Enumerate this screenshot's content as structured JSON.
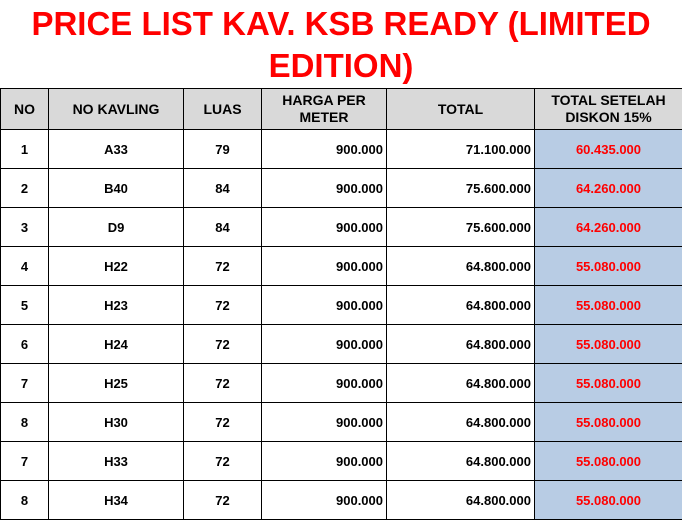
{
  "title": "PRICE LIST KAV. KSB READY (LIMITED EDITION)",
  "colors": {
    "title": "#ff0000",
    "header_bg": "#d9d9d9",
    "discount_bg": "#b8cce4",
    "discount_text": "#ff0000"
  },
  "headers": [
    "NO",
    "NO KAVLING",
    "LUAS",
    "HARGA PER METER",
    "TOTAL",
    "TOTAL SETELAH DISKON 15%"
  ],
  "rows": [
    [
      "1",
      "A33",
      "79",
      "900.000",
      "71.100.000",
      "60.435.000"
    ],
    [
      "2",
      "B40",
      "84",
      "900.000",
      "75.600.000",
      "64.260.000"
    ],
    [
      "3",
      "D9",
      "84",
      "900.000",
      "75.600.000",
      "64.260.000"
    ],
    [
      "4",
      "H22",
      "72",
      "900.000",
      "64.800.000",
      "55.080.000"
    ],
    [
      "5",
      "H23",
      "72",
      "900.000",
      "64.800.000",
      "55.080.000"
    ],
    [
      "6",
      "H24",
      "72",
      "900.000",
      "64.800.000",
      "55.080.000"
    ],
    [
      "7",
      "H25",
      "72",
      "900.000",
      "64.800.000",
      "55.080.000"
    ],
    [
      "8",
      "H30",
      "72",
      "900.000",
      "64.800.000",
      "55.080.000"
    ],
    [
      "7",
      "H33",
      "72",
      "900.000",
      "64.800.000",
      "55.080.000"
    ],
    [
      "8",
      "H34",
      "72",
      "900.000",
      "64.800.000",
      "55.080.000"
    ]
  ]
}
